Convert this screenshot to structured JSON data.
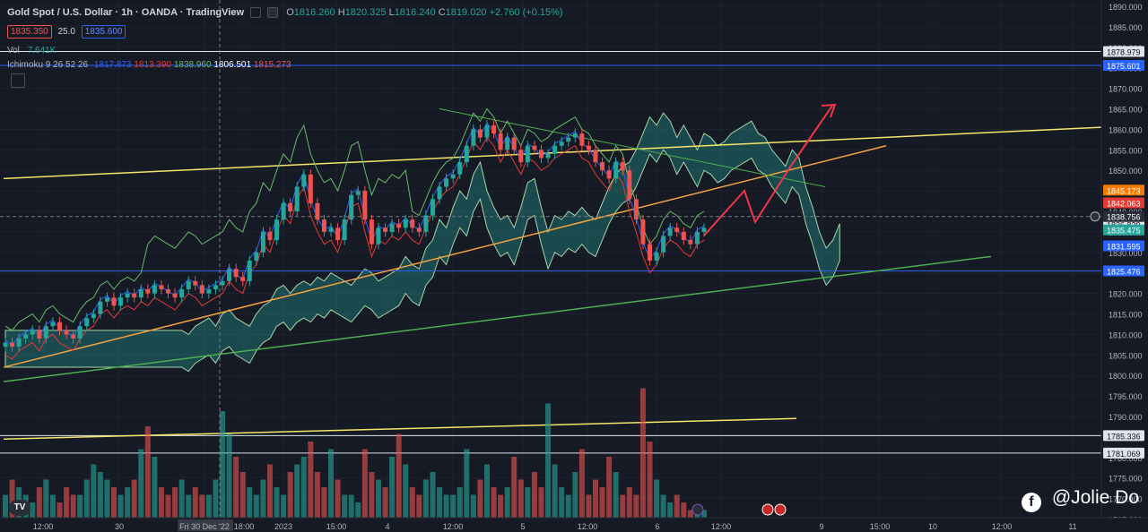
{
  "header": {
    "symbol": "Gold Spot / U.S. Dollar · 1h · OANDA · TradingView",
    "ohlc": {
      "o": "1816.260",
      "h": "1820.325",
      "l": "1816.240",
      "c": "1819.020",
      "chg": "+2.760 (+0.15%)"
    },
    "sell_price": "1835.350",
    "spread": "25.0",
    "buy_price": "1835.600",
    "vol_label": "Vol",
    "vol_value": "7.641K",
    "ichimoku_label": "Ichimoku 9 26 52 26",
    "ichimoku_values": [
      "1817.873",
      "1813.390",
      "1838.960",
      "1806.501",
      "1815.273"
    ]
  },
  "watermark": "@Jolie Do",
  "colors": {
    "bg": "#161a25",
    "up": "#26a69a",
    "down": "#ef5350",
    "yellow": "#f5e56b",
    "orange": "#f5a341",
    "green": "#4caf50",
    "red_arrow": "#f23645",
    "tenkan": "#2962ff",
    "kijun": "#e53935",
    "lagging": "#66bb6a"
  },
  "chart_data": {
    "type": "candlestick",
    "y_axis_ticks": [
      1890,
      1885,
      1880,
      1875,
      1870,
      1865,
      1860,
      1855,
      1850,
      1845,
      1840,
      1835,
      1830,
      1825,
      1820,
      1815,
      1810,
      1805,
      1800,
      1795,
      1790,
      1785,
      1780,
      1775,
      1770,
      1765
    ],
    "x_axis_ticks": [
      "12:00",
      "30",
      "Fri 30 Dec '22",
      "18:00",
      "2023",
      "15:00",
      "4",
      "12:00",
      "5",
      "12:00",
      "6",
      "12:00",
      "9",
      "15:00",
      "10",
      "12:00",
      "11"
    ],
    "price_labels": [
      {
        "value": "1878.979",
        "color": "#e0e3eb",
        "text": "#131722"
      },
      {
        "value": "1875.601",
        "color": "#2962ff",
        "text": "#ffffff"
      },
      {
        "value": "1845.173",
        "color": "#f57c00",
        "text": "#ffffff"
      },
      {
        "value": "1842.063",
        "color": "#e53935",
        "text": "#ffffff"
      },
      {
        "value": "1836.829",
        "color": "#e0e3eb",
        "text": "#131722"
      },
      {
        "value": "1838.756",
        "color": "#2a2e39",
        "text": "#ffffff"
      },
      {
        "value": "1835.475",
        "color": "#26a69a",
        "text": "#ffffff"
      },
      {
        "value": "1831.595",
        "color": "#2962ff",
        "text": "#ffffff"
      },
      {
        "value": "1825.476",
        "color": "#2962ff",
        "text": "#ffffff"
      },
      {
        "value": "1785.336",
        "color": "#e0e3eb",
        "text": "#131722"
      },
      {
        "value": "1781.069",
        "color": "#e0e3eb",
        "text": "#131722"
      }
    ],
    "horizontal_levels": [
      1878.979,
      1875.601,
      1825.476,
      1785.336,
      1781.069
    ],
    "candles_close": [
      1808,
      1807,
      1809,
      1810,
      1811,
      1809,
      1812,
      1813,
      1811,
      1810,
      1809,
      1812,
      1814,
      1815,
      1818,
      1819,
      1817,
      1819,
      1820,
      1819,
      1821,
      1820,
      1822,
      1821,
      1820,
      1819,
      1821,
      1823,
      1822,
      1820,
      1821,
      1822,
      1823,
      1826,
      1824,
      1823,
      1828,
      1830,
      1835,
      1833,
      1838,
      1842,
      1840,
      1846,
      1849,
      1842,
      1838,
      1835,
      1836,
      1833,
      1838,
      1844,
      1845,
      1838,
      1832,
      1836,
      1835,
      1837,
      1836,
      1838,
      1836,
      1835,
      1839,
      1843,
      1846,
      1848,
      1849,
      1852,
      1856,
      1860,
      1858,
      1861,
      1859,
      1855,
      1858,
      1855,
      1852,
      1856,
      1855,
      1853,
      1854,
      1856,
      1857,
      1858,
      1859,
      1856,
      1855,
      1852,
      1850,
      1848,
      1852,
      1850,
      1843,
      1838,
      1832,
      1828,
      1830,
      1834,
      1836,
      1835,
      1833,
      1832,
      1835,
      1836
    ],
    "volumes": [
      3,
      5,
      4,
      3,
      2,
      4,
      5,
      3,
      2,
      4,
      3,
      3,
      5,
      7,
      6,
      5,
      4,
      3,
      4,
      5,
      9,
      12,
      8,
      4,
      3,
      4,
      5,
      3,
      4,
      3,
      3,
      5,
      14,
      11,
      8,
      6,
      4,
      3,
      5,
      7,
      4,
      3,
      6,
      7,
      8,
      10,
      6,
      4,
      9,
      5,
      3,
      3,
      2,
      9,
      6,
      5,
      4,
      8,
      11,
      7,
      4,
      3,
      5,
      6,
      4,
      3,
      3,
      4,
      9,
      3,
      5,
      7,
      4,
      3,
      4,
      8,
      5,
      4,
      6,
      4,
      15,
      7,
      4,
      3,
      6,
      9,
      3,
      5,
      4,
      8,
      6,
      3,
      4,
      3,
      17,
      10,
      5,
      3,
      2,
      3,
      2,
      1,
      1,
      1
    ]
  }
}
